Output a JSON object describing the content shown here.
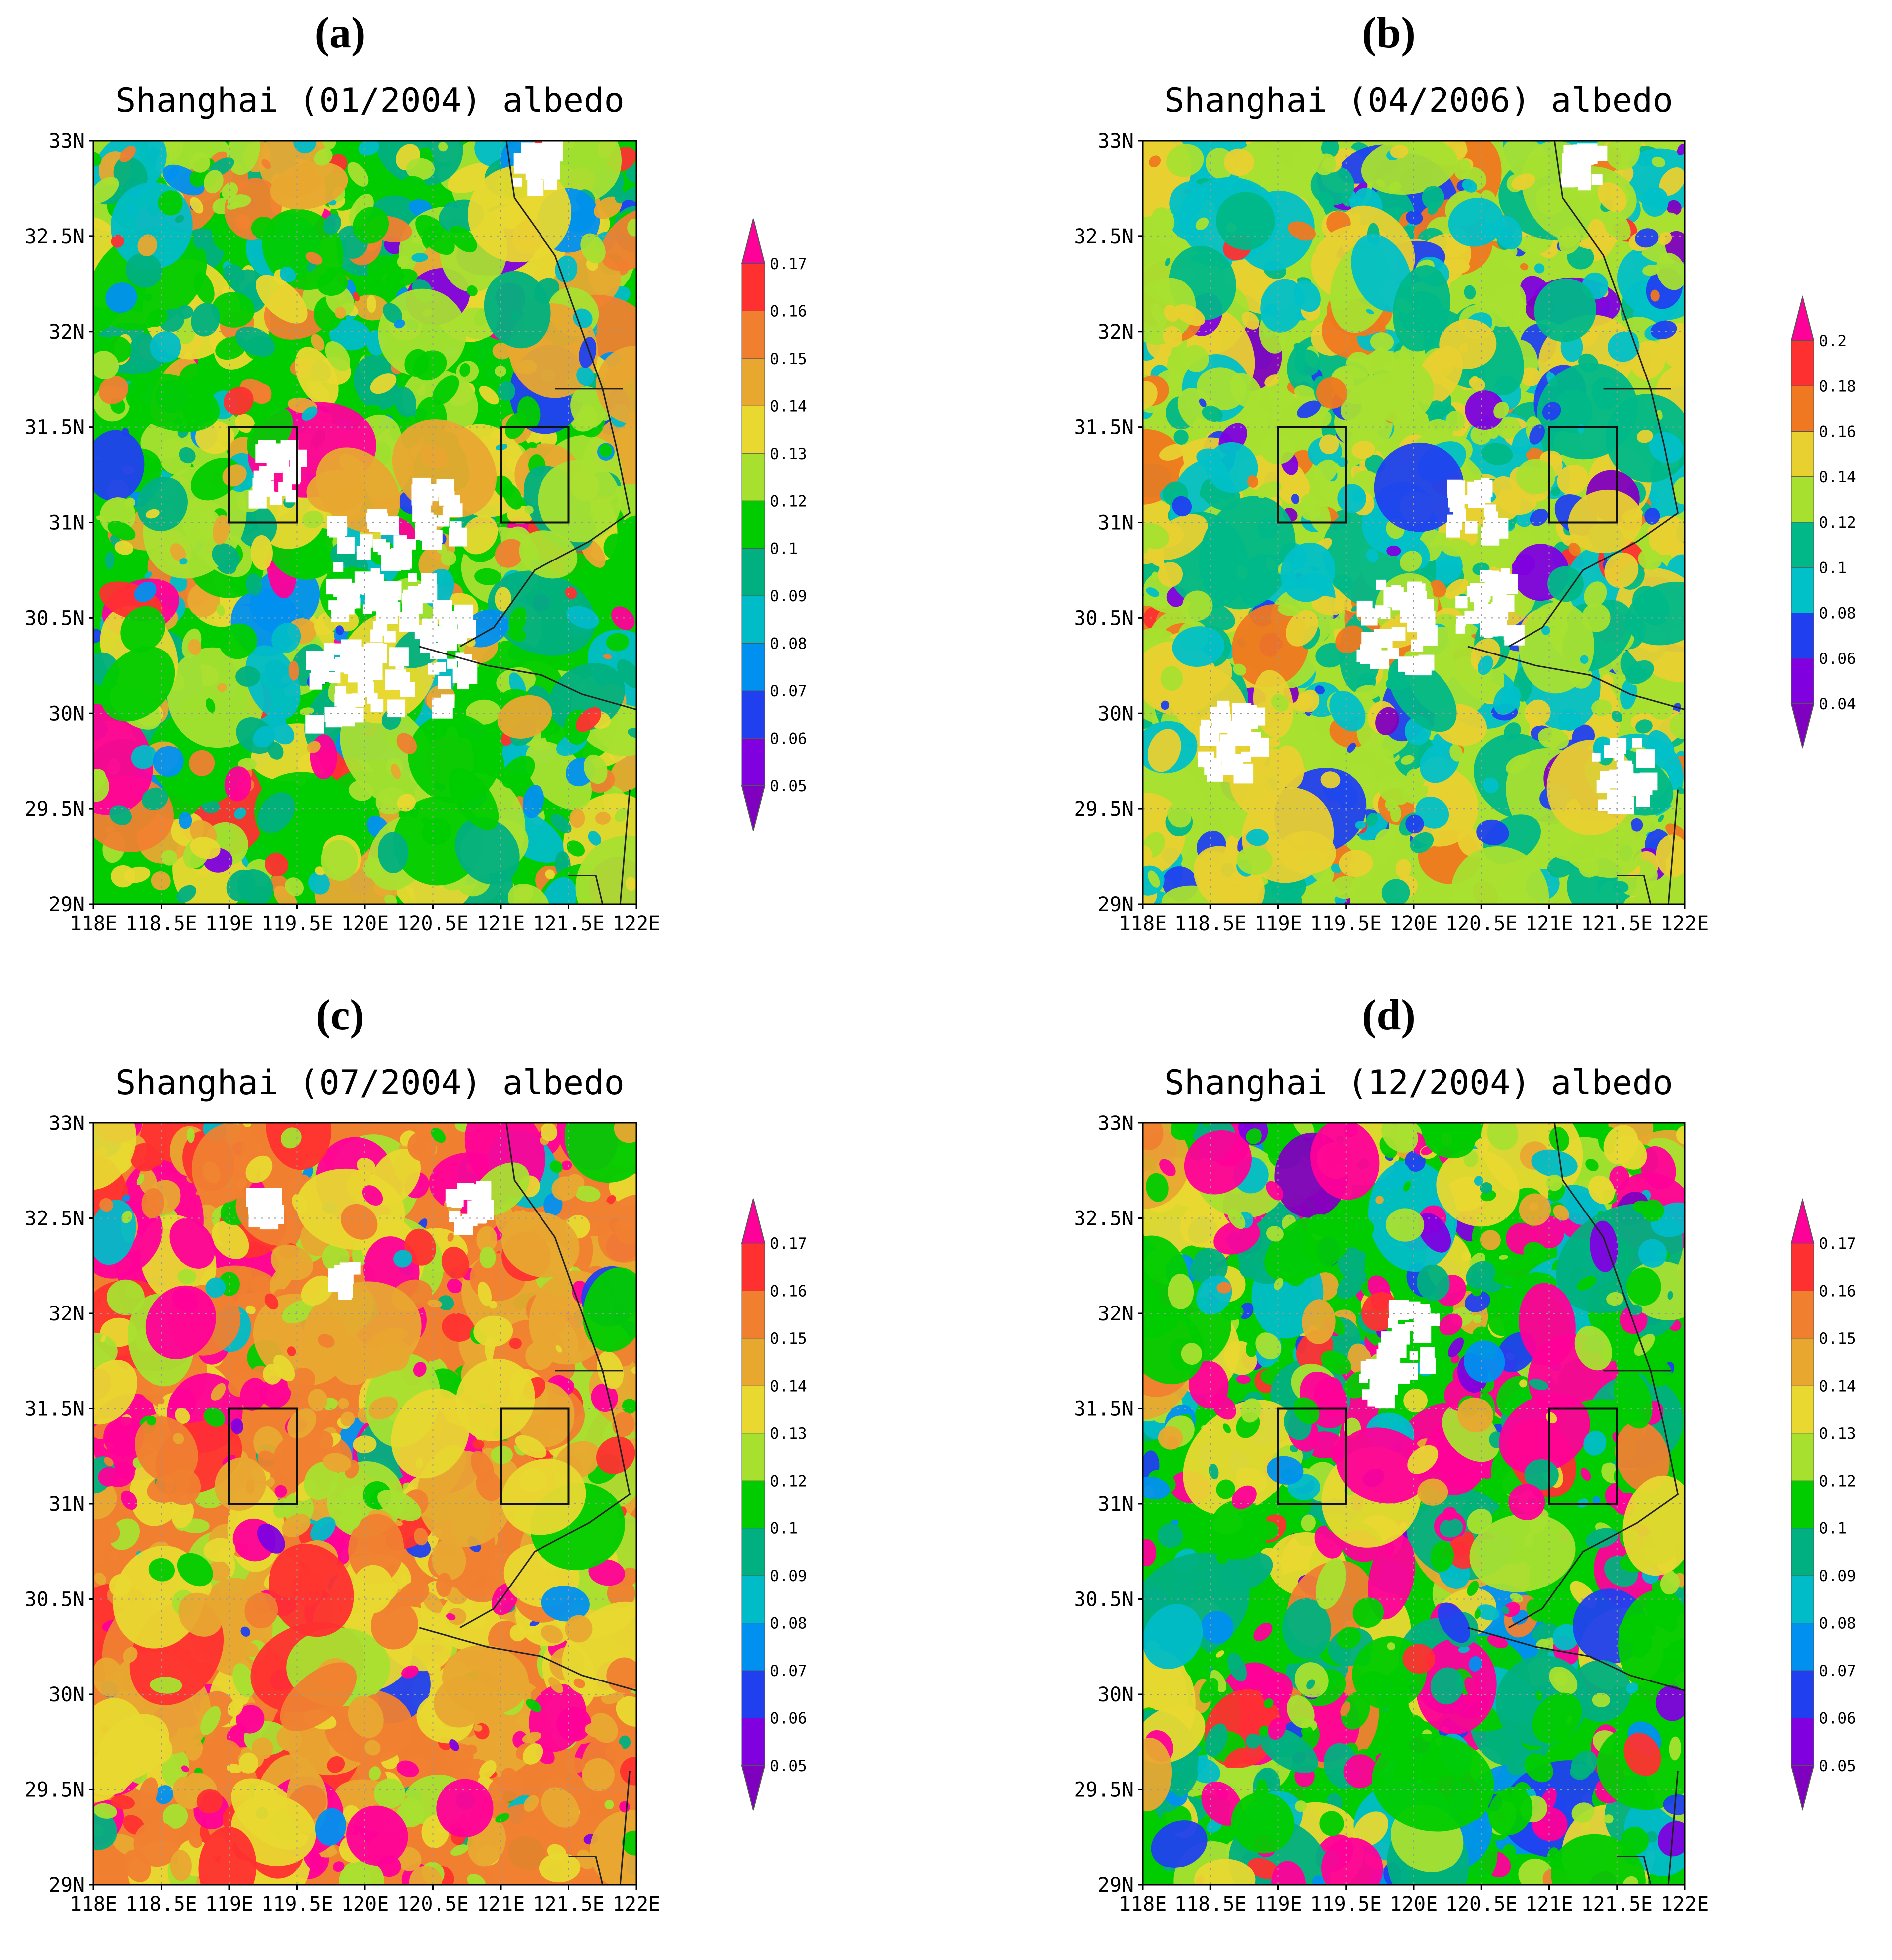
{
  "chart_data": [
    {
      "type": "heatmap",
      "panel_label": "(a)",
      "title": "Shanghai (01/2004) albedo",
      "x_ticks": [
        "118E",
        "118.5E",
        "119E",
        "119.5E",
        "120E",
        "120.5E",
        "121E",
        "121.5E",
        "122E"
      ],
      "y_ticks": [
        "33N",
        "32.5N",
        "32N",
        "31.5N",
        "31N",
        "30.5N",
        "30N",
        "29.5N",
        "29N"
      ],
      "xlim": [
        118,
        122
      ],
      "ylim": [
        29,
        33
      ],
      "grid": true,
      "colorbar": {
        "levels": [
          "0.17",
          "0.16",
          "0.15",
          "0.14",
          "0.13",
          "0.12",
          "0.1",
          "0.09",
          "0.08",
          "0.07",
          "0.06",
          "0.05"
        ],
        "colors": [
          "#ff0099",
          "#ff3030",
          "#f08030",
          "#e8a830",
          "#e8d830",
          "#a8e030",
          "#00cc00",
          "#00b080",
          "#00bcc8",
          "#0090f0",
          "#2040f0",
          "#8000e0",
          "#8000c0"
        ],
        "extend": "both"
      },
      "field_weights": [
        0.02,
        0.03,
        0.06,
        0.08,
        0.12,
        0.18,
        0.22,
        0.14,
        0.08,
        0.04,
        0.02,
        0.01,
        0.0
      ],
      "boxes": [
        {
          "lon": [
            119,
            119.5
          ],
          "lat": [
            31,
            31.5
          ]
        },
        {
          "lon": [
            121,
            121.5
          ],
          "lat": [
            31,
            31.5
          ]
        }
      ]
    },
    {
      "type": "heatmap",
      "panel_label": "(b)",
      "title": "Shanghai (04/2006) albedo",
      "x_ticks": [
        "118E",
        "118.5E",
        "119E",
        "119.5E",
        "120E",
        "120.5E",
        "121E",
        "121.5E",
        "122E"
      ],
      "y_ticks": [
        "33N",
        "32.5N",
        "32N",
        "31.5N",
        "31N",
        "30.5N",
        "30N",
        "29.5N",
        "29N"
      ],
      "xlim": [
        118,
        122
      ],
      "ylim": [
        29,
        33
      ],
      "grid": true,
      "colorbar": {
        "levels": [
          "0.2",
          "0.18",
          "0.16",
          "0.14",
          "0.12",
          "0.1",
          "0.08",
          "0.06",
          "0.04"
        ],
        "colors": [
          "#ff0099",
          "#ff3030",
          "#f07820",
          "#e8d030",
          "#a8e030",
          "#00b888",
          "#00c0c8",
          "#2040f0",
          "#8000e0",
          "#8000c0"
        ],
        "extend": "both"
      },
      "field_weights": [
        0.0,
        0.01,
        0.05,
        0.22,
        0.32,
        0.15,
        0.15,
        0.06,
        0.03,
        0.01
      ],
      "boxes": [
        {
          "lon": [
            119,
            119.5
          ],
          "lat": [
            31,
            31.5
          ]
        },
        {
          "lon": [
            121,
            121.5
          ],
          "lat": [
            31,
            31.5
          ]
        }
      ]
    },
    {
      "type": "heatmap",
      "panel_label": "(c)",
      "title": "Shanghai (07/2004) albedo",
      "x_ticks": [
        "118E",
        "118.5E",
        "119E",
        "119.5E",
        "120E",
        "120.5E",
        "121E",
        "121.5E",
        "122E"
      ],
      "y_ticks": [
        "33N",
        "32.5N",
        "32N",
        "31.5N",
        "31N",
        "30.5N",
        "30N",
        "29.5N",
        "29N"
      ],
      "xlim": [
        118,
        122
      ],
      "ylim": [
        29,
        33
      ],
      "grid": true,
      "colorbar": {
        "levels": [
          "0.17",
          "0.16",
          "0.15",
          "0.14",
          "0.13",
          "0.12",
          "0.1",
          "0.09",
          "0.08",
          "0.07",
          "0.06",
          "0.05"
        ],
        "colors": [
          "#ff0099",
          "#ff3030",
          "#f08030",
          "#e8a830",
          "#e8d830",
          "#a8e030",
          "#00cc00",
          "#00b080",
          "#00bcc8",
          "#0090f0",
          "#2040f0",
          "#8000e0",
          "#8000c0"
        ],
        "extend": "both"
      },
      "field_weights": [
        0.1,
        0.08,
        0.24,
        0.2,
        0.18,
        0.1,
        0.04,
        0.02,
        0.01,
        0.01,
        0.01,
        0.01,
        0.0
      ],
      "boxes": [
        {
          "lon": [
            119,
            119.5
          ],
          "lat": [
            31,
            31.5
          ]
        },
        {
          "lon": [
            121,
            121.5
          ],
          "lat": [
            31,
            31.5
          ]
        }
      ]
    },
    {
      "type": "heatmap",
      "panel_label": "(d)",
      "title": "Shanghai (12/2004) albedo",
      "x_ticks": [
        "118E",
        "118.5E",
        "119E",
        "119.5E",
        "120E",
        "120.5E",
        "121E",
        "121.5E",
        "122E"
      ],
      "y_ticks": [
        "33N",
        "32.5N",
        "32N",
        "31.5N",
        "31N",
        "30.5N",
        "30N",
        "29.5N",
        "29N"
      ],
      "xlim": [
        118,
        122
      ],
      "ylim": [
        29,
        33
      ],
      "grid": true,
      "colorbar": {
        "levels": [
          "0.17",
          "0.16",
          "0.15",
          "0.14",
          "0.13",
          "0.12",
          "0.1",
          "0.09",
          "0.08",
          "0.07",
          "0.06",
          "0.05"
        ],
        "colors": [
          "#ff0099",
          "#ff3030",
          "#f08030",
          "#e8a830",
          "#e8d830",
          "#a8e030",
          "#00cc00",
          "#00b080",
          "#00bcc8",
          "#0090f0",
          "#2040f0",
          "#8000e0",
          "#8000c0"
        ],
        "extend": "both"
      },
      "field_weights": [
        0.14,
        0.02,
        0.02,
        0.04,
        0.06,
        0.14,
        0.26,
        0.14,
        0.08,
        0.04,
        0.03,
        0.02,
        0.01
      ],
      "boxes": [
        {
          "lon": [
            119,
            119.5
          ],
          "lat": [
            31,
            31.5
          ]
        },
        {
          "lon": [
            121,
            121.5
          ],
          "lat": [
            31,
            31.5
          ]
        }
      ]
    }
  ]
}
